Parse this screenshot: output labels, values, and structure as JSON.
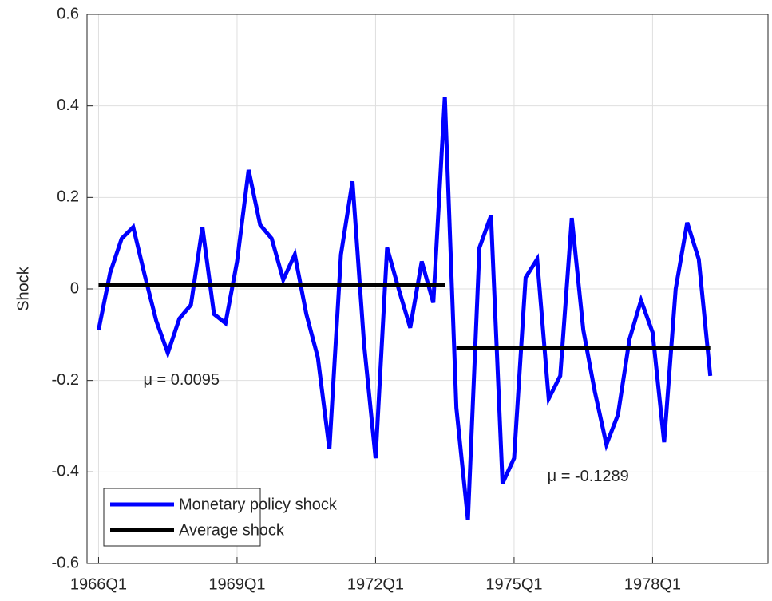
{
  "chart_data": {
    "type": "line",
    "ylabel": "Shock",
    "x": [
      "1966Q1",
      "1966Q2",
      "1966Q3",
      "1966Q4",
      "1967Q1",
      "1967Q2",
      "1967Q3",
      "1967Q4",
      "1968Q1",
      "1968Q2",
      "1968Q3",
      "1968Q4",
      "1969Q1",
      "1969Q2",
      "1969Q3",
      "1969Q4",
      "1970Q1",
      "1970Q2",
      "1970Q3",
      "1970Q4",
      "1971Q1",
      "1971Q2",
      "1971Q3",
      "1971Q4",
      "1972Q1",
      "1972Q2",
      "1972Q3",
      "1972Q4",
      "1973Q1",
      "1973Q2",
      "1973Q3",
      "1973Q4",
      "1974Q1",
      "1974Q2",
      "1974Q3",
      "1974Q4",
      "1975Q1",
      "1975Q2",
      "1975Q3",
      "1975Q4",
      "1976Q1",
      "1976Q2",
      "1976Q3",
      "1976Q4",
      "1977Q1",
      "1977Q2",
      "1977Q3",
      "1977Q4",
      "1978Q1",
      "1978Q2",
      "1978Q3",
      "1978Q4",
      "1979Q1",
      "1979Q2"
    ],
    "series": [
      {
        "name": "Monetary policy shock",
        "color": "#0000ff",
        "values": [
          -0.09,
          0.035,
          0.11,
          0.135,
          0.03,
          -0.07,
          -0.14,
          -0.065,
          -0.035,
          0.135,
          -0.055,
          -0.075,
          0.06,
          0.26,
          0.14,
          0.11,
          0.02,
          0.075,
          -0.055,
          -0.15,
          -0.35,
          0.075,
          0.235,
          -0.12,
          -0.37,
          0.09,
          0.0,
          -0.085,
          0.06,
          -0.03,
          0.42,
          -0.26,
          -0.505,
          0.09,
          0.16,
          -0.425,
          -0.37,
          0.025,
          0.065,
          -0.24,
          -0.19,
          0.155,
          -0.09,
          -0.225,
          -0.34,
          -0.275,
          -0.11,
          -0.025,
          -0.095,
          -0.335,
          0.0,
          0.145,
          0.065,
          -0.19
        ]
      },
      {
        "name": "Average shock",
        "color": "#000000",
        "segments": [
          {
            "x": [
              "1966Q1",
              "1973Q3"
            ],
            "value": 0.0095,
            "label": "μ = 0.0095"
          },
          {
            "x": [
              "1973Q4",
              "1979Q2"
            ],
            "value": -0.1289,
            "label": "μ = -0.1289"
          }
        ]
      }
    ],
    "xlim": [
      "1965Q4",
      "1980Q3"
    ],
    "xticks": [
      "1966Q1",
      "1969Q1",
      "1972Q1",
      "1975Q1",
      "1978Q1"
    ],
    "ylim": [
      -0.6,
      0.6
    ],
    "yticks": [
      -0.6,
      -0.4,
      -0.2,
      0,
      0.2,
      0.4,
      0.6
    ],
    "grid": true,
    "legend": "lower left"
  }
}
